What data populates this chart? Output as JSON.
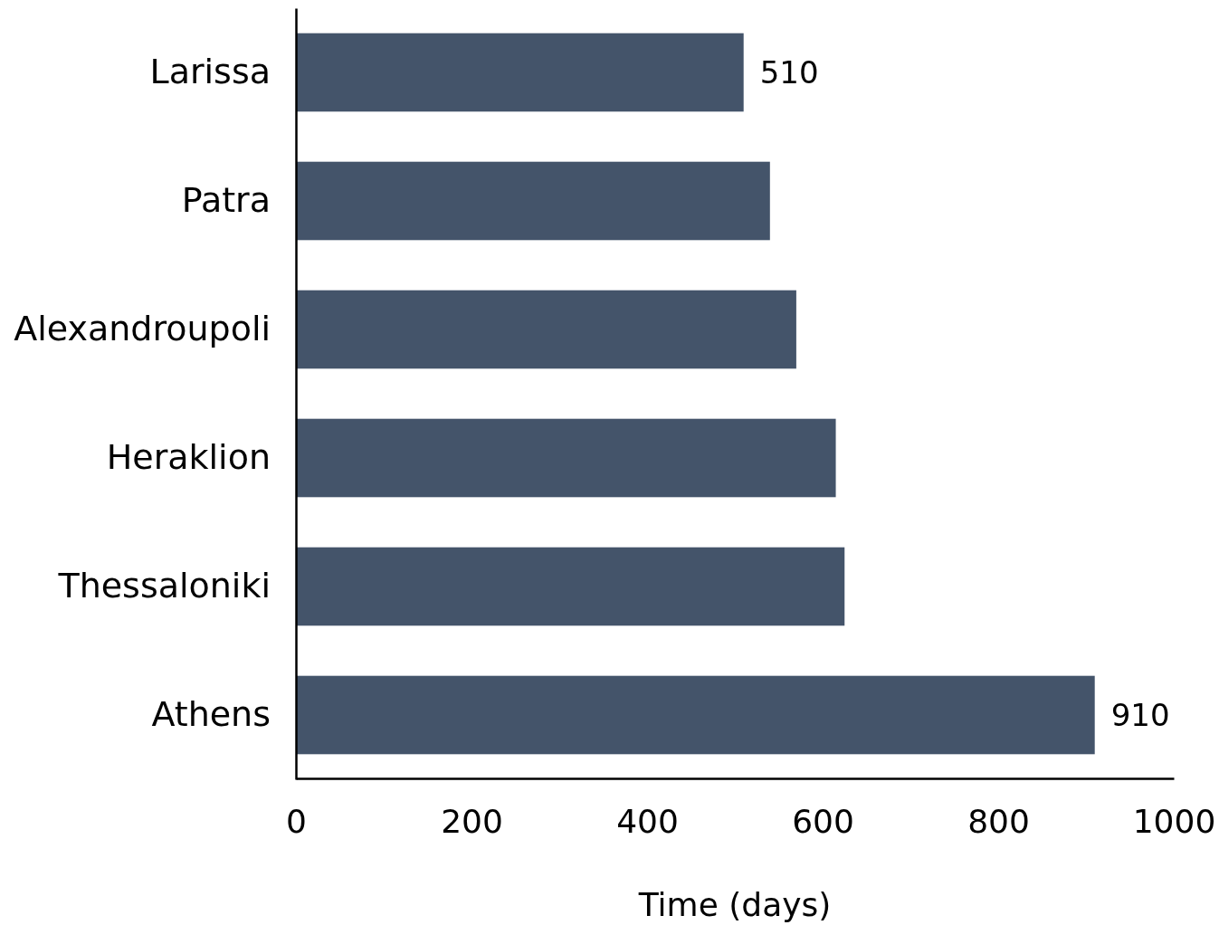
{
  "chart_data": {
    "type": "bar",
    "orientation": "horizontal",
    "xlabel": "Time (days)",
    "categories": [
      "Larissa",
      "Patra",
      "Alexandroupoli",
      "Heraklion",
      "Thessaloniki",
      "Athens"
    ],
    "values": [
      510,
      540,
      570,
      615,
      625,
      910
    ],
    "value_labels": [
      "510",
      null,
      null,
      null,
      null,
      "910"
    ],
    "color": "#44546a",
    "xlim": [
      0,
      1000
    ],
    "xticks": [
      0,
      200,
      400,
      600,
      800,
      1000
    ],
    "grid": false
  }
}
